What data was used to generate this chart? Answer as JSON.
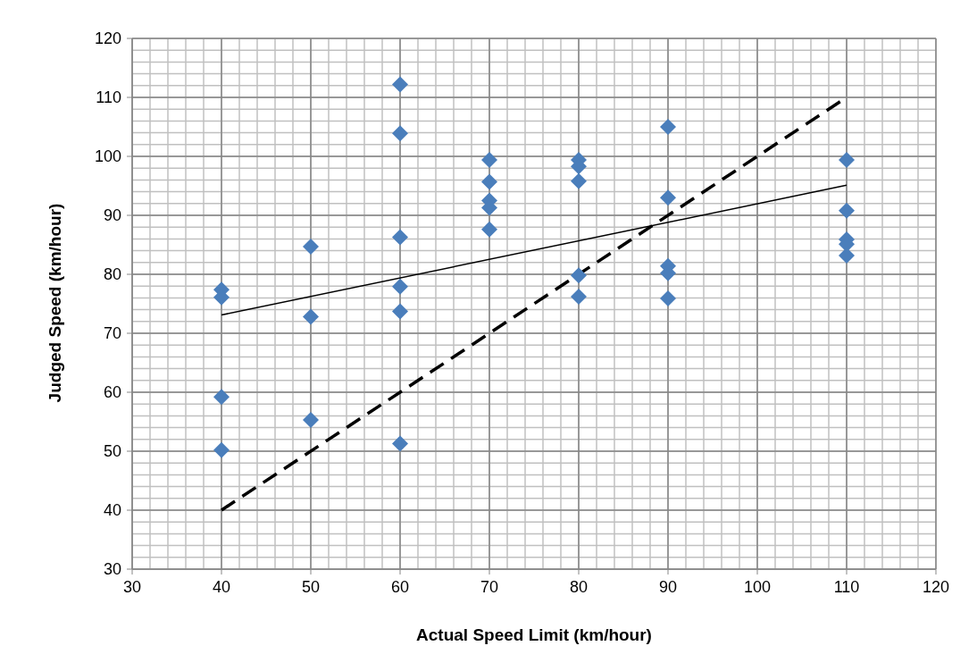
{
  "chart_data": {
    "type": "scatter",
    "xlabel": "Actual Speed Limit (km/hour)",
    "ylabel": "Judged Speed (km/hour)",
    "xlim": [
      30,
      120
    ],
    "ylim": [
      30,
      120
    ],
    "xticks": [
      30,
      {
        "value": 32,
        "label": null
      },
      {
        "value": 34,
        "label": null
      },
      {
        "value": 36,
        "label": null
      },
      {
        "value": 38,
        "label": null
      },
      40,
      {
        "value": 42,
        "label": null
      },
      {
        "value": 44,
        "label": null
      },
      {
        "value": 46,
        "label": null
      },
      {
        "value": 48,
        "label": null
      },
      50,
      {
        "value": 52,
        "label": null
      },
      {
        "value": 54,
        "label": null
      },
      {
        "value": 56,
        "label": null
      },
      {
        "value": 58,
        "label": null
      },
      60,
      {
        "value": 62,
        "label": null
      },
      {
        "value": 64,
        "label": null
      },
      {
        "value": 66,
        "label": null
      },
      {
        "value": 68,
        "label": null
      },
      70,
      {
        "value": 72,
        "label": null
      },
      {
        "value": 74,
        "label": null
      },
      {
        "value": 76,
        "label": null
      },
      {
        "value": 78,
        "label": null
      },
      80,
      {
        "value": 82,
        "label": null
      },
      {
        "value": 84,
        "label": null
      },
      {
        "value": 86,
        "label": null
      },
      {
        "value": 88,
        "label": null
      },
      90,
      {
        "value": 92,
        "label": null
      },
      {
        "value": 94,
        "label": null
      },
      {
        "value": 96,
        "label": null
      },
      {
        "value": 98,
        "label": null
      },
      100,
      {
        "value": 102,
        "label": null
      },
      {
        "value": 104,
        "label": null
      },
      {
        "value": 106,
        "label": null
      },
      {
        "value": 108,
        "label": null
      },
      110,
      {
        "value": 112,
        "label": null
      },
      {
        "value": 114,
        "label": null
      },
      {
        "value": 116,
        "label": null
      },
      {
        "value": 118,
        "label": null
      },
      120
    ],
    "yticks": [
      30,
      {
        "value": 32,
        "label": null
      },
      {
        "value": 34,
        "label": null
      },
      {
        "value": 36,
        "label": null
      },
      {
        "value": 38,
        "label": null
      },
      40,
      {
        "value": 42,
        "label": null
      },
      {
        "value": 44,
        "label": null
      },
      {
        "value": 46,
        "label": null
      },
      {
        "value": 48,
        "label": null
      },
      50,
      {
        "value": 52,
        "label": null
      },
      {
        "value": 54,
        "label": null
      },
      {
        "value": 56,
        "label": null
      },
      {
        "value": 58,
        "label": null
      },
      60,
      {
        "value": 62,
        "label": null
      },
      {
        "value": 64,
        "label": null
      },
      {
        "value": 66,
        "label": null
      },
      {
        "value": 68,
        "label": null
      },
      70,
      {
        "value": 72,
        "label": null
      },
      {
        "value": 74,
        "label": null
      },
      {
        "value": 76,
        "label": null
      },
      {
        "value": 78,
        "label": null
      },
      80,
      {
        "value": 82,
        "label": null
      },
      {
        "value": 84,
        "label": null
      },
      {
        "value": 86,
        "label": null
      },
      {
        "value": 88,
        "label": null
      },
      90,
      {
        "value": 92,
        "label": null
      },
      {
        "value": 94,
        "label": null
      },
      {
        "value": 96,
        "label": null
      },
      {
        "value": 98,
        "label": null
      },
      100,
      {
        "value": 102,
        "label": null
      },
      {
        "value": 104,
        "label": null
      },
      {
        "value": 106,
        "label": null
      },
      {
        "value": 108,
        "label": null
      },
      110,
      {
        "value": 112,
        "label": null
      },
      {
        "value": 114,
        "label": null
      },
      {
        "value": 116,
        "label": null
      },
      {
        "value": 118,
        "label": null
      },
      120
    ],
    "grid": true,
    "marker": "diamond",
    "series": [
      {
        "color": "#4a7ebb",
        "x": [
          40,
          40,
          40,
          40,
          50,
          50,
          50,
          60,
          60,
          60,
          60,
          60,
          60,
          70,
          70,
          70,
          70,
          70,
          80,
          80,
          80,
          80,
          80,
          90,
          90,
          90,
          90,
          90,
          110,
          110,
          110,
          110,
          110
        ],
        "values": [
          77.4,
          76.1,
          59.2,
          50.2,
          84.7,
          72.8,
          55.3,
          112.2,
          103.9,
          86.3,
          77.9,
          73.7,
          51.3,
          99.4,
          95.7,
          92.5,
          91.3,
          87.6,
          99.4,
          98.3,
          95.8,
          79.8,
          76.2,
          105,
          93,
          81.4,
          80.2,
          75.9,
          99.4,
          90.8,
          85.9,
          85.1,
          83.2
        ]
      },
      {
        "type": "line",
        "color": "#000000",
        "line_style": "solid",
        "marker": "none",
        "x": [
          40,
          110
        ],
        "values": [
          73.1,
          95.1
        ]
      },
      {
        "type": "line",
        "color": "#000000",
        "line_style": "dashed",
        "marker": "none",
        "x": [
          40,
          110
        ],
        "values": [
          40,
          110
        ]
      }
    ]
  }
}
